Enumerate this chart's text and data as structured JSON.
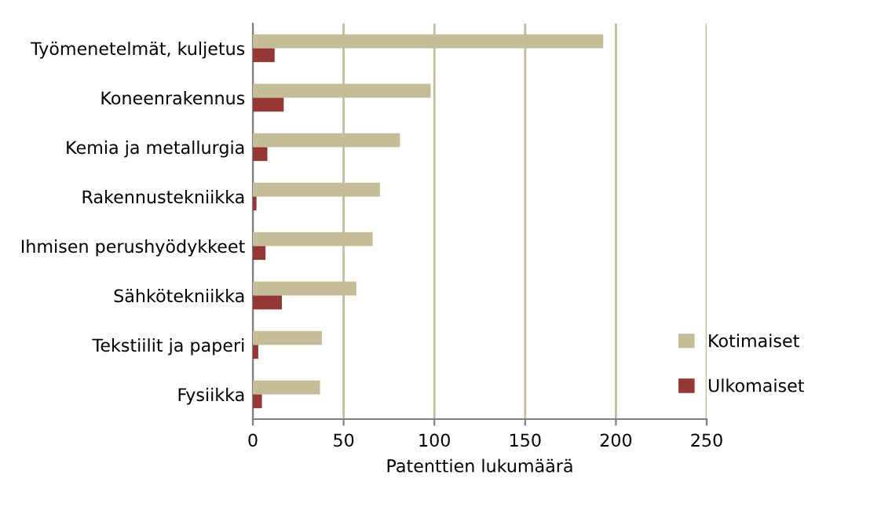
{
  "chart_data": {
    "type": "bar",
    "orientation": "horizontal",
    "xlabel": "Patenttien lukumäärä",
    "categories": [
      "Työmenetelmät, kuljetus",
      "Koneenrakennus",
      "Kemia ja metallurgia",
      "Rakennustekniikka",
      "Ihmisen perushyödykkeet",
      "Sähkötekniikka",
      "Tekstiilit ja paperi",
      "Fysiikka"
    ],
    "series": [
      {
        "name": "Kotimaiset",
        "color": "#c4bd97",
        "values": [
          193,
          98,
          81,
          70,
          66,
          57,
          38,
          37
        ]
      },
      {
        "name": "Ulkomaiset",
        "color": "#953735",
        "values": [
          12,
          17,
          8,
          2,
          7,
          16,
          3,
          5
        ]
      }
    ],
    "xlim": [
      0,
      250
    ],
    "xticks": [
      0,
      50,
      100,
      150,
      200,
      250
    ],
    "grid": "x",
    "legend": "bottom right"
  }
}
